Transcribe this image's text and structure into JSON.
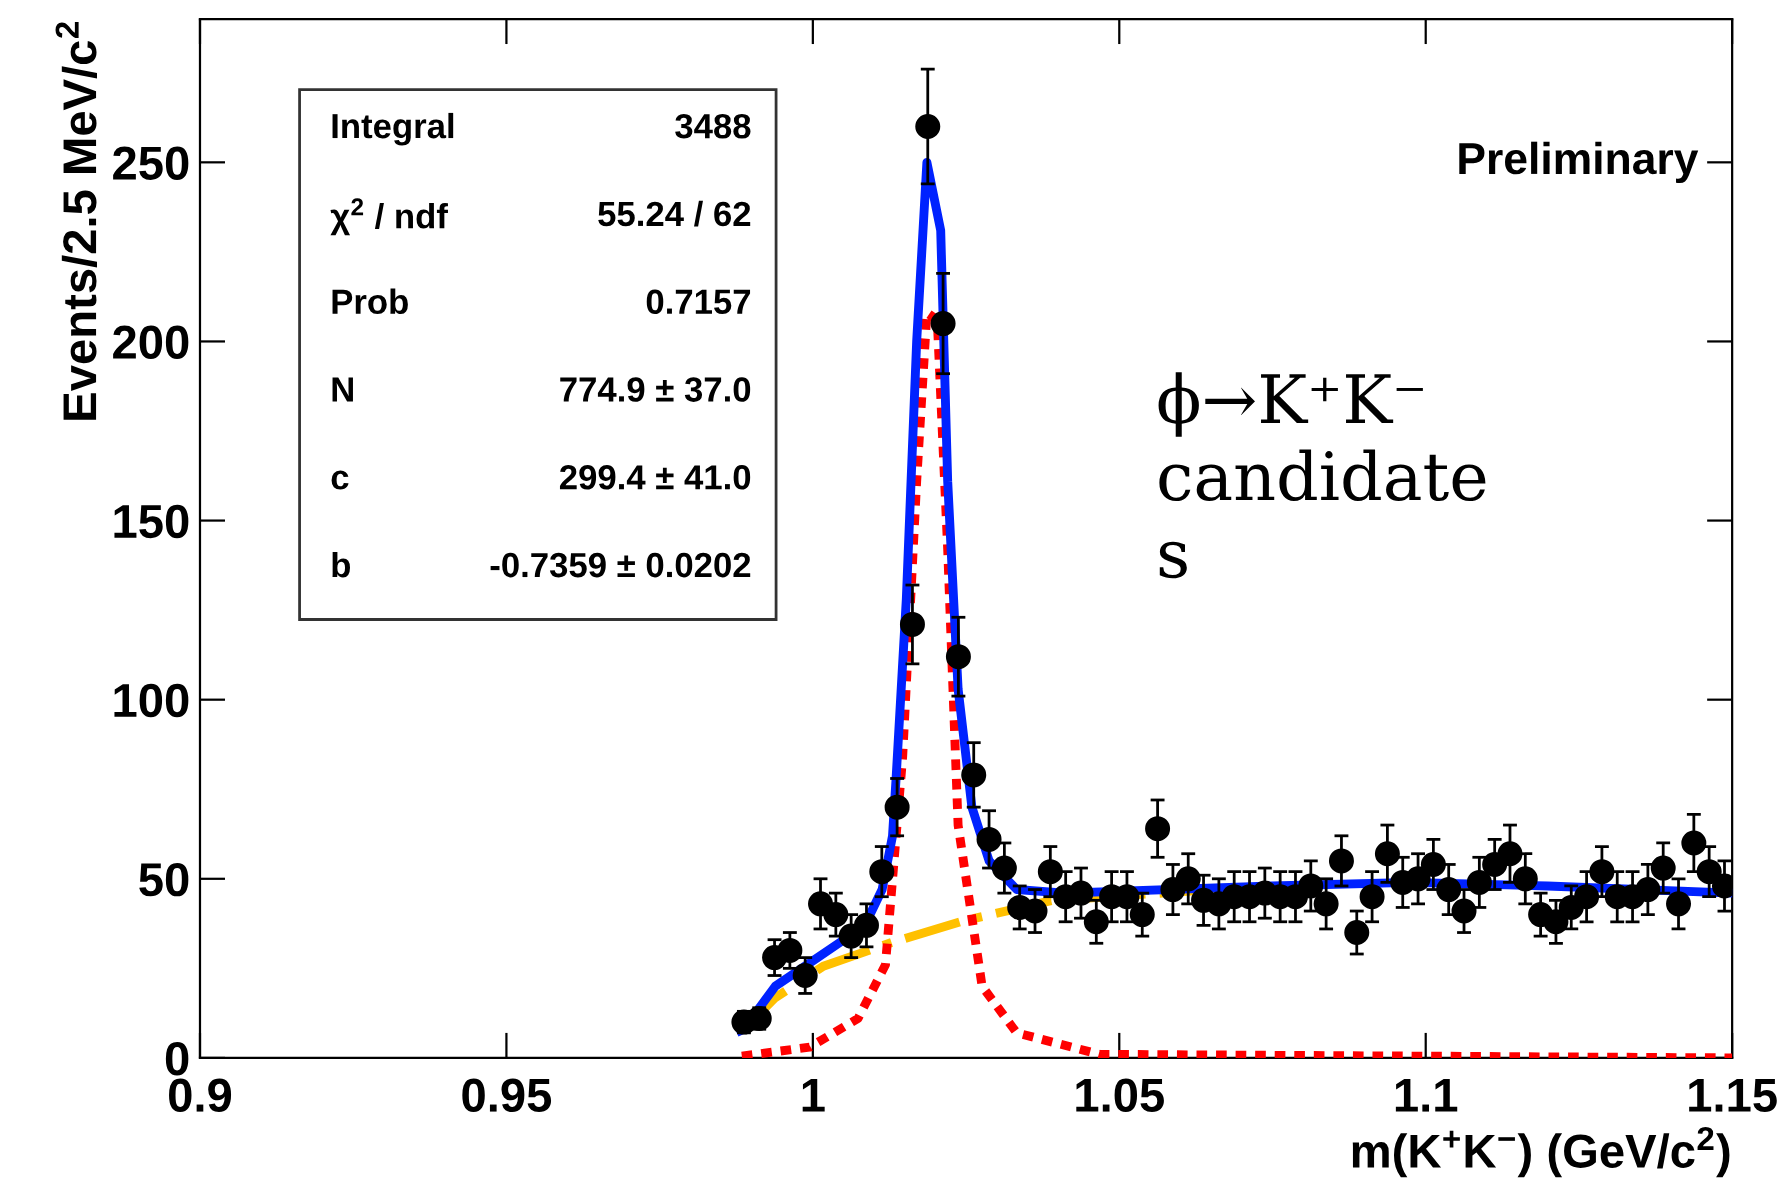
{
  "chart_data": {
    "type": "scatter",
    "xlabel": "m(K$^{+}$K$^{−}$) (GeV/c$^{2}$)",
    "ylabel": "Events/2.5 MeV/c$^{2}$",
    "xlim": [
      0.9,
      1.15
    ],
    "xticks": [
      0.9,
      0.95,
      1,
      1.05,
      1.1,
      1.15
    ],
    "ylim": [
      0,
      290
    ],
    "yticks": [
      0,
      50,
      100,
      150,
      200,
      250
    ],
    "grid": false,
    "series": [
      {
        "color": "#000000",
        "marker": "circle",
        "x": [
          0.98875,
          0.99125,
          0.99375,
          0.99625,
          0.99875,
          1.00125,
          1.00375,
          1.00625,
          1.00875,
          1.01125,
          1.01375,
          1.01625,
          1.01875,
          1.02125,
          1.02375,
          1.02625,
          1.02875,
          1.03125,
          1.03375,
          1.03625,
          1.03875,
          1.04125,
          1.04375,
          1.04625,
          1.04875,
          1.05125,
          1.05375,
          1.05625,
          1.05875,
          1.06125,
          1.06375,
          1.06625,
          1.06875,
          1.07125,
          1.07375,
          1.07625,
          1.07875,
          1.08125,
          1.08375,
          1.08625,
          1.08875,
          1.09125,
          1.09375,
          1.09625,
          1.09875,
          1.10125,
          1.10375,
          1.10625,
          1.10875,
          1.11125,
          1.11375,
          1.11625,
          1.11875,
          1.12125,
          1.12375,
          1.12625,
          1.12875,
          1.13125,
          1.13375,
          1.13625,
          1.13875,
          1.14125,
          1.14375,
          1.14625,
          1.14875
        ],
        "values": [
          10,
          11,
          28,
          30,
          23,
          43,
          40,
          34,
          37,
          52,
          70,
          121,
          260,
          205,
          112,
          79,
          61,
          53,
          42,
          41,
          52,
          45,
          46,
          38,
          45,
          45,
          40,
          64,
          47,
          50,
          44,
          43,
          45,
          45,
          46,
          45,
          45,
          48,
          43,
          55,
          35,
          45,
          57,
          49,
          50,
          54,
          47,
          41,
          49,
          54,
          57,
          50,
          40,
          38,
          42,
          45,
          52,
          45,
          45,
          47,
          53,
          43,
          60,
          52,
          48
        ],
        "errors": [
          3,
          3,
          5,
          5,
          5,
          7,
          6,
          6,
          6,
          7,
          8,
          11,
          16,
          14,
          11,
          9,
          8,
          7,
          6,
          6,
          7,
          7,
          7,
          6,
          7,
          7,
          6,
          8,
          7,
          7,
          7,
          7,
          7,
          7,
          7,
          7,
          7,
          7,
          7,
          7,
          6,
          7,
          8,
          7,
          7,
          7,
          7,
          6,
          7,
          7,
          8,
          7,
          6,
          6,
          6,
          7,
          7,
          7,
          7,
          7,
          7,
          7,
          8,
          7,
          7
        ]
      },
      {
        "type": "line",
        "color": "#ffc000",
        "line_style": "dashed",
        "x": [
          0.98873,
          0.99386,
          1.0017,
          1.013,
          1.0242,
          1.0389,
          1.0636
        ],
        "values": [
          8,
          16.8,
          25.6,
          32.3,
          38.1,
          43.9,
          46.8
        ]
      },
      {
        "type": "line",
        "color": "#ff0000",
        "line_style": "dotted",
        "x": [
          0.98841,
          0.99948,
          1.00737,
          1.01185,
          1.01465,
          1.01694,
          1.01861,
          1.0203,
          1.022,
          1.0237,
          1.02762,
          1.03326,
          1.04676,
          1.15
        ],
        "values": [
          0.5,
          3,
          11,
          26,
          84,
          161,
          208,
          206,
          142,
          65,
          20,
          7,
          1,
          0
        ]
      },
      {
        "type": "line",
        "color": "#0022ff",
        "line_style": "solid",
        "x": [
          0.98822,
          0.98873,
          0.99386,
          0.99948,
          1.00509,
          1.00904,
          1.0113,
          1.013,
          1.01358,
          1.01525,
          1.01694,
          1.01861,
          1.02086,
          1.022,
          1.0237,
          1.02595,
          1.02876,
          1.03326,
          1.0411,
          1.0749,
          1.0974,
          1.1199,
          1.15
        ],
        "values": [
          7.6,
          8,
          20,
          26.5,
          33,
          39,
          47,
          62,
          78,
          128,
          200,
          250,
          231,
          161,
          103,
          70,
          55,
          47,
          46,
          48,
          49,
          48,
          46
        ]
      }
    ],
    "annotations": [
      "Integral",
      "3488",
      "χ$^{2}$ / ndf",
      "55.24 / 62",
      "Prob",
      "0.7157",
      "N",
      "774.9 ± 37.0",
      "c",
      "299.4 ± 41.0",
      "b",
      "-0.7359 ± 0.0202",
      "Preliminary",
      "ϕ→K⁺K⁻\ncandidate\ns"
    ]
  }
}
